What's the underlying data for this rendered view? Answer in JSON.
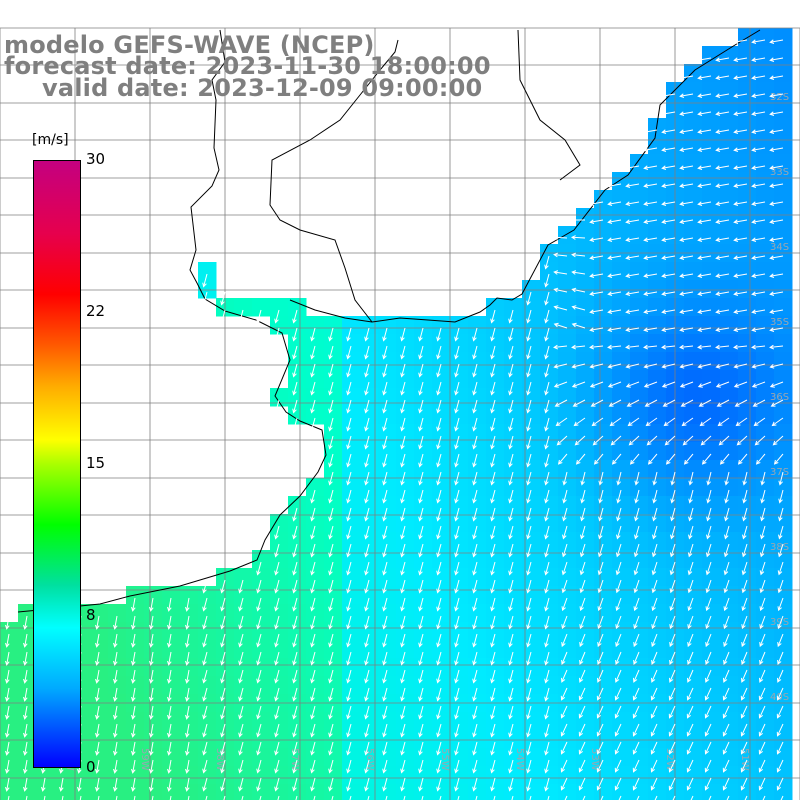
{
  "title": {
    "line1": "modelo GEFS-WAVE (NCEP)",
    "line2": "forecast date: 2023-11-30 18:00:00",
    "line3": "valid date: 2023-12-09 09:00:00"
  },
  "colorbar": {
    "unit": "[m/s]",
    "ticks": [
      "30",
      "22",
      "15",
      "8",
      "0"
    ],
    "range": [
      0,
      30
    ]
  },
  "colors": {
    "title": "#7f7f7f",
    "arrows": "#ffffff",
    "coast": "#000000",
    "grid": "#7f7f7f"
  },
  "grid_labels": {
    "lat": [
      "32S",
      "33S",
      "34S",
      "35S",
      "36S",
      "37S",
      "38S",
      "39S",
      "40S"
    ],
    "lon": [
      "61W",
      "60W",
      "59W",
      "58W",
      "57W",
      "56W",
      "55W",
      "54W",
      "53W",
      "52W",
      "51W"
    ]
  },
  "chart_data": {
    "type": "heatmap",
    "variable": "wind speed with direction vectors",
    "unit": "m/s",
    "color_scale_range": [
      0,
      30
    ],
    "approx_ranges": {
      "open_ocean_south_east": [
        5,
        7
      ],
      "coastal_south_west": [
        9,
        12
      ]
    }
  }
}
